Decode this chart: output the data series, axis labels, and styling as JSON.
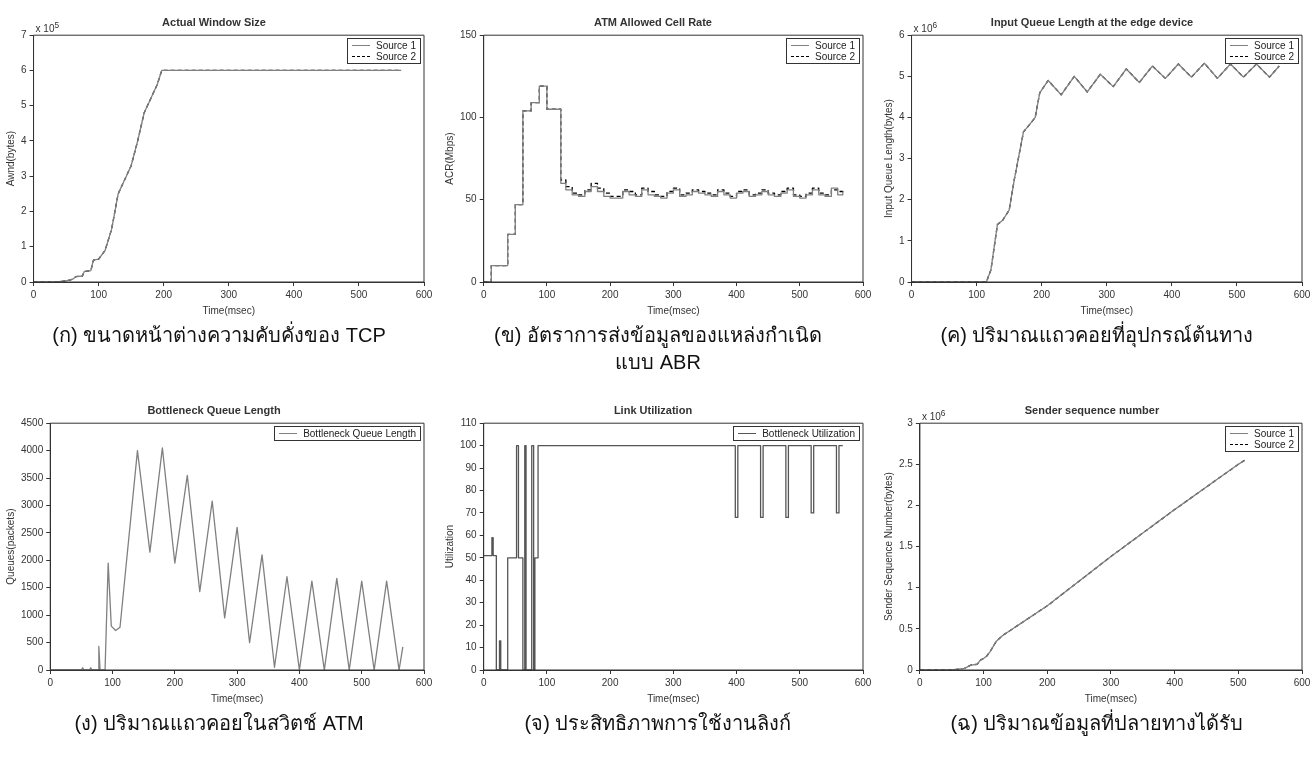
{
  "chart_data": [
    {
      "type": "line",
      "title": "Actual Window Size",
      "subtitle": "(ก) ขนาดหน้าต่างความคับคั่งของ TCP",
      "xlabel": "Time(msec)",
      "ylabel": "Awnd(bytes)",
      "annotations": [
        "x 10$^{5}$"
      ],
      "legend": "top right",
      "grid": false,
      "x": [
        0,
        35,
        50,
        60,
        65,
        75,
        78,
        88,
        92,
        100,
        110,
        120,
        130,
        140,
        150,
        160,
        170,
        180,
        190,
        197,
        565
      ],
      "series": [
        {
          "name": "Source 1",
          "color": "#808080",
          "line_style": "solid",
          "values": [
            0,
            0,
            0.03,
            0.08,
            0.15,
            0.17,
            0.3,
            0.32,
            0.62,
            0.65,
            0.9,
            1.5,
            2.5,
            2.9,
            3.3,
            4.0,
            4.8,
            5.2,
            5.6,
            6.0,
            6.0
          ]
        },
        {
          "name": "Source 2",
          "color": "#000000",
          "line_style": "dashed",
          "values": [
            0,
            0,
            0.03,
            0.08,
            0.15,
            0.17,
            0.3,
            0.32,
            0.62,
            0.65,
            0.9,
            1.5,
            2.5,
            2.9,
            3.3,
            4.0,
            4.8,
            5.2,
            5.6,
            6.0,
            6.0
          ]
        }
      ],
      "xlim": [
        0,
        600
      ],
      "xticks": [
        0,
        100,
        200,
        300,
        400,
        500,
        600
      ],
      "ylim": [
        0,
        7
      ],
      "yticks": [
        0,
        1,
        2,
        3,
        4,
        5,
        6,
        7
      ]
    },
    {
      "type": "step",
      "title": "ATM Allowed Cell Rate",
      "subtitle": "(ข) อัตราการส่งข้อมูลของแหล่งกำเนิด แบบ ABR",
      "xlabel": "Time(msec)",
      "ylabel": "ACR(Mbps)",
      "legend": "top right",
      "grid": false,
      "x": [
        0,
        12,
        38,
        50,
        62,
        75,
        88,
        100,
        122,
        130,
        140,
        150,
        160,
        170,
        180,
        190,
        200,
        210,
        220,
        230,
        240,
        250,
        260,
        270,
        280,
        290,
        300,
        310,
        320,
        330,
        340,
        350,
        360,
        370,
        380,
        390,
        400,
        410,
        420,
        430,
        440,
        450,
        460,
        470,
        480,
        490,
        500,
        510,
        520,
        530,
        540,
        550,
        560,
        568
      ],
      "series": [
        {
          "name": "Source 1",
          "color": "#808080",
          "line_style": "solid",
          "values": [
            0,
            10,
            29,
            47,
            104,
            109,
            119,
            105,
            60,
            56,
            53,
            52,
            55,
            58,
            55,
            52,
            51,
            51,
            55,
            53,
            52,
            56,
            53,
            52,
            51,
            54,
            56,
            52,
            53,
            55,
            54,
            53,
            52,
            55,
            53,
            51,
            54,
            55,
            52,
            53,
            55,
            53,
            52,
            54,
            56,
            52,
            51,
            53,
            56,
            53,
            52,
            57,
            53,
            55
          ]
        },
        {
          "name": "Source 2",
          "color": "#000000",
          "line_style": "dashed",
          "values": [
            0,
            10,
            29,
            47,
            104,
            109,
            119,
            105,
            62,
            58,
            54,
            53,
            56,
            60,
            57,
            54,
            52,
            52,
            56,
            55,
            53,
            57,
            55,
            53,
            52,
            55,
            57,
            53,
            54,
            56,
            55,
            54,
            53,
            56,
            54,
            52,
            55,
            56,
            53,
            54,
            56,
            54,
            53,
            55,
            57,
            53,
            52,
            54,
            57,
            54,
            53,
            56,
            55,
            54
          ]
        }
      ],
      "xlim": [
        0,
        600
      ],
      "xticks": [
        0,
        100,
        200,
        300,
        400,
        500,
        600
      ],
      "ylim": [
        0,
        150
      ],
      "yticks": [
        0,
        50,
        100,
        150
      ]
    },
    {
      "type": "line",
      "title": "Input Queue Length at the edge device",
      "subtitle": "(ค) ปริมาณแถวคอยที่อุปกรณ์ต้นทาง",
      "xlabel": "Time(msec)",
      "ylabel": "Input Queue Length(bytes)",
      "annotations": [
        "x 10$^{6}$"
      ],
      "legend": "top right",
      "grid": false,
      "x": [
        0,
        115,
        122,
        132,
        140,
        150,
        158,
        172,
        180,
        190,
        197,
        210,
        230,
        250,
        270,
        290,
        310,
        330,
        350,
        370,
        390,
        410,
        430,
        450,
        470,
        490,
        510,
        530,
        550,
        565
      ],
      "series": [
        {
          "name": "Source 1",
          "color": "#808080",
          "line_style": "solid",
          "values": [
            0,
            0,
            0.3,
            1.4,
            1.5,
            1.75,
            2.5,
            3.65,
            3.8,
            4.0,
            4.6,
            4.9,
            4.55,
            5.0,
            4.62,
            5.05,
            4.75,
            5.18,
            4.85,
            5.25,
            4.95,
            5.3,
            4.98,
            5.32,
            4.95,
            5.3,
            4.98,
            5.3,
            4.98,
            5.25
          ]
        },
        {
          "name": "Source 2",
          "color": "#000000",
          "line_style": "dashed",
          "values": [
            0,
            0,
            0.3,
            1.4,
            1.5,
            1.75,
            2.5,
            3.65,
            3.8,
            4.0,
            4.6,
            4.9,
            4.55,
            5.0,
            4.62,
            5.05,
            4.75,
            5.18,
            4.85,
            5.25,
            4.95,
            5.3,
            4.98,
            5.32,
            4.95,
            5.3,
            4.98,
            5.3,
            4.98,
            5.25
          ]
        }
      ],
      "xlim": [
        0,
        600
      ],
      "xticks": [
        0,
        100,
        200,
        300,
        400,
        500,
        600
      ],
      "ylim": [
        0,
        6
      ],
      "yticks": [
        0,
        1,
        2,
        3,
        4,
        5,
        6
      ]
    },
    {
      "type": "line",
      "title": "Bottleneck Queue Length",
      "subtitle": "(ง) ปริมาณแถวคอยในสวิตช์ ATM",
      "xlabel": "Time(msec)",
      "ylabel": "Queues(packets)",
      "legend": "top right",
      "grid": false,
      "x": [
        0,
        50,
        52,
        54,
        63,
        65,
        67,
        77,
        78,
        80,
        88,
        93,
        98,
        105,
        112,
        120,
        140,
        160,
        180,
        200,
        220,
        240,
        260,
        280,
        300,
        320,
        340,
        360,
        380,
        400,
        420,
        440,
        460,
        480,
        500,
        520,
        540,
        560,
        566
      ],
      "series": [
        {
          "name": "Bottleneck Queue Length",
          "color": "#808080",
          "line_style": "solid",
          "values": [
            0,
            0,
            40,
            0,
            0,
            40,
            0,
            0,
            430,
            0,
            0,
            1950,
            800,
            720,
            780,
            1700,
            4000,
            2150,
            4050,
            1950,
            3550,
            1430,
            3080,
            950,
            2600,
            500,
            2100,
            50,
            1700,
            0,
            1620,
            0,
            1670,
            0,
            1620,
            0,
            1620,
            0,
            420
          ]
        }
      ],
      "xlim": [
        0,
        600
      ],
      "xticks": [
        0,
        100,
        200,
        300,
        400,
        500,
        600
      ],
      "ylim": [
        0,
        4500
      ],
      "yticks": [
        0,
        500,
        1000,
        1500,
        2000,
        2500,
        3000,
        3500,
        4000,
        4500
      ]
    },
    {
      "type": "step",
      "title": "Link Utilization",
      "subtitle": "(จ) ประสิทธิภาพการใช้งานลิงก์",
      "xlabel": "Time(msec)",
      "ylabel": "Utilization",
      "legend": "top right",
      "grid": false,
      "x": [
        0,
        13,
        15,
        20,
        25,
        27,
        38,
        52,
        55,
        62,
        65,
        67,
        76,
        79,
        81,
        86,
        398,
        402,
        438,
        442,
        478,
        482,
        518,
        522,
        558,
        562,
        568
      ],
      "series": [
        {
          "name": "Bottleneck Utilization",
          "color": "#555555",
          "line_style": "solid",
          "values": [
            51,
            59,
            51,
            0,
            13,
            0,
            50,
            100,
            50,
            0,
            100,
            0,
            100,
            0,
            50,
            100,
            68,
            100,
            68,
            100,
            68,
            100,
            70,
            100,
            70,
            100,
            100
          ]
        }
      ],
      "xlim": [
        0,
        600
      ],
      "xticks": [
        0,
        100,
        200,
        300,
        400,
        500,
        600
      ],
      "ylim": [
        0,
        110
      ],
      "yticks": [
        0,
        10,
        20,
        30,
        40,
        50,
        60,
        70,
        80,
        90,
        100,
        110
      ]
    },
    {
      "type": "line",
      "title": "Sender sequence number",
      "subtitle": "(ฉ) ปริมาณข้อมูลที่ปลายทางได้รับ",
      "xlabel": "Time(msec)",
      "ylabel": "Sender Sequence Number(bytes)",
      "annotations": [
        "x 10$^{6}$"
      ],
      "legend": "top right",
      "grid": false,
      "x": [
        0,
        50,
        70,
        80,
        90,
        95,
        100,
        105,
        110,
        120,
        130,
        200,
        300,
        400,
        500,
        510
      ],
      "series": [
        {
          "name": "Source 1",
          "color": "#808080",
          "line_style": "solid",
          "values": [
            0,
            0,
            0.02,
            0.06,
            0.07,
            0.12,
            0.14,
            0.17,
            0.22,
            0.35,
            0.42,
            0.78,
            1.38,
            1.95,
            2.5,
            2.55
          ]
        },
        {
          "name": "Source 2",
          "color": "#000000",
          "line_style": "dashed",
          "values": [
            0,
            0,
            0.02,
            0.06,
            0.07,
            0.12,
            0.14,
            0.17,
            0.22,
            0.35,
            0.42,
            0.78,
            1.38,
            1.95,
            2.5,
            2.55
          ]
        }
      ],
      "xlim": [
        0,
        600
      ],
      "xticks": [
        0,
        100,
        200,
        300,
        400,
        500,
        600
      ],
      "ylim": [
        0,
        3
      ],
      "yticks": [
        0,
        0.5,
        1,
        1.5,
        2,
        2.5,
        3
      ]
    }
  ]
}
